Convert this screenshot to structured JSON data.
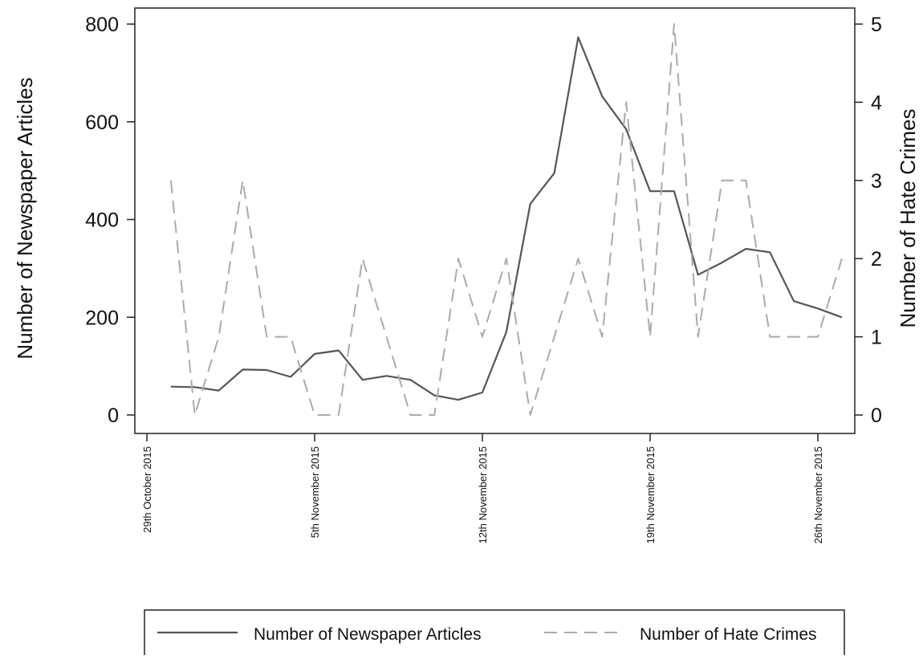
{
  "chart_data": {
    "type": "line",
    "title": "",
    "ylabel_left": "Number of Newspaper Articles",
    "ylabel_right": "Number of Hate Crimes",
    "xlim": [
      "2015-10-29",
      "2015-11-30"
    ],
    "ylim_left": [
      0,
      800
    ],
    "ylim_right": [
      0,
      5
    ],
    "yticks_left": [
      0,
      200,
      400,
      600,
      800
    ],
    "yticks_right": [
      0,
      1,
      2,
      3,
      4,
      5
    ],
    "x_ticks": [
      {
        "date": "2015-10-29",
        "label": "29th October 2015"
      },
      {
        "date": "2015-11-05",
        "label": "5th November 2015"
      },
      {
        "date": "2015-11-12",
        "label": "12th November 2015"
      },
      {
        "date": "2015-11-19",
        "label": "19th November 2015"
      },
      {
        "date": "2015-11-26",
        "label": "26th November 2015"
      }
    ],
    "grid": false,
    "legend_position": "bottom",
    "series": [
      {
        "name": "Number of Newspaper Articles",
        "axis": "left",
        "style": "solid",
        "color": "#555555",
        "x": [
          "2015-10-30",
          "2015-10-31",
          "2015-11-01",
          "2015-11-02",
          "2015-11-03",
          "2015-11-04",
          "2015-11-05",
          "2015-11-06",
          "2015-11-07",
          "2015-11-08",
          "2015-11-09",
          "2015-11-10",
          "2015-11-11",
          "2015-11-12",
          "2015-11-13",
          "2015-11-14",
          "2015-11-15",
          "2015-11-16",
          "2015-11-17",
          "2015-11-18",
          "2015-11-19",
          "2015-11-20",
          "2015-11-21",
          "2015-11-22",
          "2015-11-23",
          "2015-11-24",
          "2015-11-25",
          "2015-11-26",
          "2015-11-27"
        ],
        "values": [
          58,
          57,
          50,
          93,
          92,
          78,
          125,
          132,
          72,
          80,
          72,
          40,
          31,
          46,
          170,
          432,
          495,
          773,
          652,
          585,
          458,
          458,
          287,
          312,
          340,
          333,
          233,
          218,
          200
        ]
      },
      {
        "name": "Number of Hate Crimes",
        "axis": "right",
        "style": "dashed",
        "color": "#aaaaaa",
        "x": [
          "2015-10-30",
          "2015-10-31",
          "2015-11-01",
          "2015-11-02",
          "2015-11-03",
          "2015-11-04",
          "2015-11-05",
          "2015-11-06",
          "2015-11-07",
          "2015-11-08",
          "2015-11-09",
          "2015-11-10",
          "2015-11-11",
          "2015-11-12",
          "2015-11-13",
          "2015-11-14",
          "2015-11-15",
          "2015-11-16",
          "2015-11-17",
          "2015-11-18",
          "2015-11-19",
          "2015-11-20",
          "2015-11-21",
          "2015-11-22",
          "2015-11-23",
          "2015-11-24",
          "2015-11-25",
          "2015-11-26",
          "2015-11-27"
        ],
        "values": [
          3,
          0,
          1,
          3,
          1,
          1,
          0,
          0,
          2,
          1,
          0,
          0,
          2,
          1,
          2,
          0,
          1,
          2,
          1,
          4,
          1,
          5,
          1,
          3,
          3,
          1,
          1,
          1,
          2
        ]
      }
    ]
  }
}
